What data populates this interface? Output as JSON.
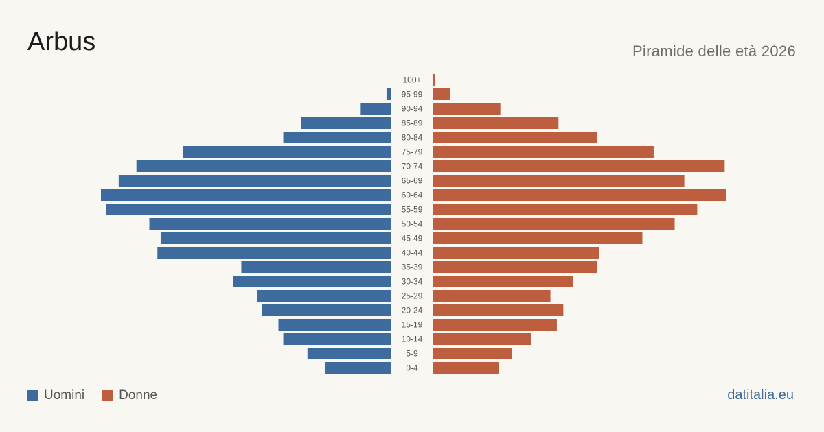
{
  "header": {
    "title": "Arbus",
    "subtitle": "Piramide delle età 2026"
  },
  "colors": {
    "men": "#3d6b9e",
    "women": "#bd5f3f",
    "tick_label": "#555555",
    "source": "#3d6b9e"
  },
  "legend": {
    "men_label": "Uomini",
    "women_label": "Donne"
  },
  "footer": {
    "source": "datitalia.eu"
  },
  "chart_data": {
    "type": "bar",
    "orientation": "horizontal-pyramid",
    "categories": [
      "100+",
      "95-99",
      "90-94",
      "85-89",
      "80-84",
      "75-79",
      "70-74",
      "65-69",
      "60-64",
      "55-59",
      "50-54",
      "45-49",
      "40-44",
      "35-39",
      "30-34",
      "25-29",
      "20-24",
      "15-19",
      "10-14",
      "5-9",
      "0-4"
    ],
    "xlim": [
      0,
      180
    ],
    "series": [
      {
        "name": "Uomini",
        "side": "left",
        "color": "#3d6b9e",
        "values": [
          0,
          3,
          19,
          56,
          67,
          129,
          158,
          169,
          180,
          177,
          150,
          143,
          145,
          93,
          98,
          83,
          80,
          70,
          67,
          52,
          41
        ]
      },
      {
        "name": "Donne",
        "side": "right",
        "color": "#bd5f3f",
        "values": [
          1,
          11,
          42,
          78,
          102,
          137,
          181,
          156,
          182,
          164,
          150,
          130,
          103,
          102,
          87,
          73,
          81,
          77,
          61,
          49,
          41
        ]
      }
    ]
  }
}
